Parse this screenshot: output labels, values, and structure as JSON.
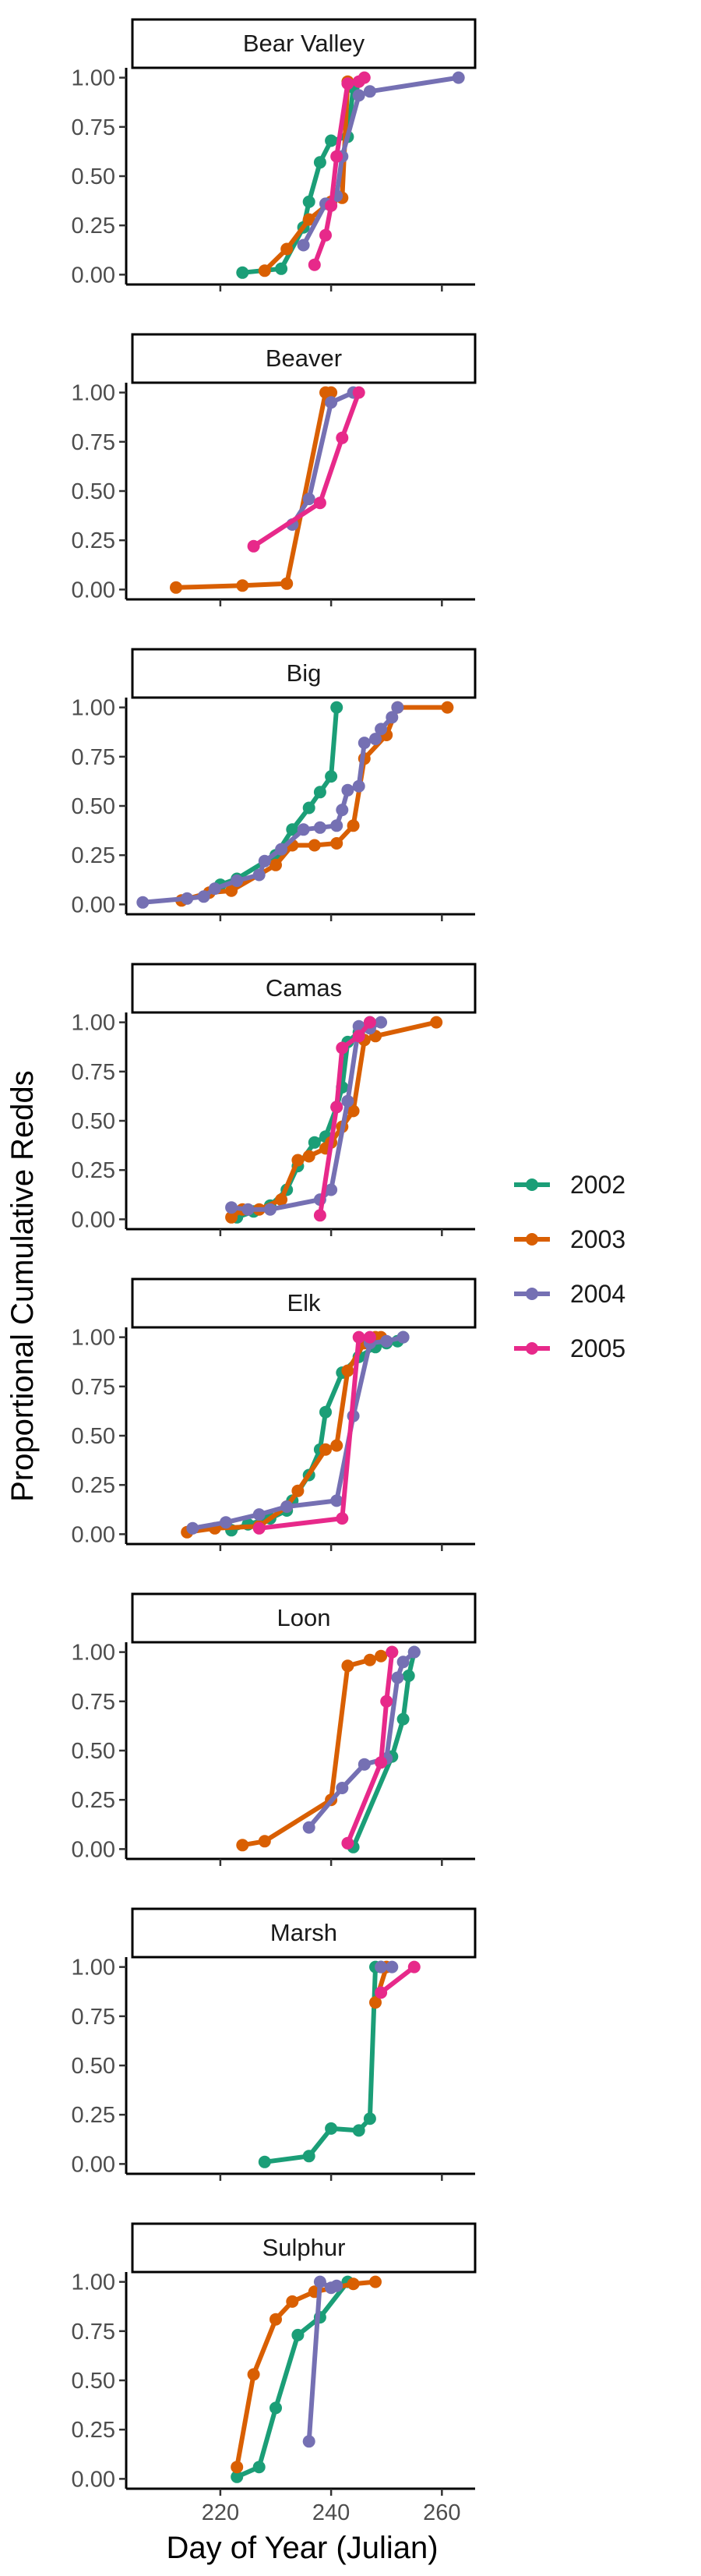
{
  "chart_data": {
    "type": "line",
    "xlabel": "Day of Year (Julian)",
    "ylabel": "Proportional Cumulative Redds",
    "xlim": [
      203,
      266
    ],
    "ylim": [
      -0.05,
      1.05
    ],
    "x_ticks": [
      220,
      240,
      260
    ],
    "y_ticks": [
      0.0,
      0.25,
      0.5,
      0.75,
      1.0
    ],
    "y_tick_labels": [
      "0.00",
      "0.25",
      "0.50",
      "0.75",
      "1.00"
    ],
    "grid": false,
    "legend_position": "right",
    "legend": [
      {
        "name": "2002",
        "color": "#1b9e77"
      },
      {
        "name": "2003",
        "color": "#d95f02"
      },
      {
        "name": "2004",
        "color": "#7570b3"
      },
      {
        "name": "2005",
        "color": "#e7298a"
      }
    ],
    "panels": [
      {
        "title": "Bear Valley",
        "series": [
          {
            "name": "2002",
            "points": [
              [
                224,
                0.01
              ],
              [
                231,
                0.03
              ],
              [
                235,
                0.24
              ],
              [
                236,
                0.37
              ],
              [
                238,
                0.57
              ],
              [
                240,
                0.68
              ],
              [
                243,
                0.7
              ],
              [
                244,
                0.95
              ]
            ]
          },
          {
            "name": "2003",
            "points": [
              [
                228,
                0.02
              ],
              [
                232,
                0.13
              ],
              [
                236,
                0.28
              ],
              [
                240,
                0.37
              ],
              [
                242,
                0.39
              ],
              [
                243,
                0.98
              ]
            ]
          },
          {
            "name": "2004",
            "points": [
              [
                235,
                0.15
              ],
              [
                239,
                0.36
              ],
              [
                241,
                0.4
              ],
              [
                242,
                0.6
              ],
              [
                245,
                0.91
              ],
              [
                247,
                0.93
              ],
              [
                263,
                1.0
              ]
            ]
          },
          {
            "name": "2005",
            "points": [
              [
                237,
                0.05
              ],
              [
                239,
                0.2
              ],
              [
                240,
                0.35
              ],
              [
                241,
                0.6
              ],
              [
                243,
                0.97
              ],
              [
                245,
                0.98
              ],
              [
                246,
                1.0
              ]
            ]
          }
        ]
      },
      {
        "title": "Beaver",
        "series": [
          {
            "name": "2003",
            "points": [
              [
                212,
                0.01
              ],
              [
                224,
                0.02
              ],
              [
                232,
                0.03
              ],
              [
                239,
                1.0
              ],
              [
                240,
                1.0
              ]
            ]
          },
          {
            "name": "2004",
            "points": [
              [
                233,
                0.33
              ],
              [
                236,
                0.46
              ],
              [
                240,
                0.95
              ],
              [
                244,
                1.0
              ]
            ]
          },
          {
            "name": "2005",
            "points": [
              [
                226,
                0.22
              ],
              [
                238,
                0.44
              ],
              [
                242,
                0.77
              ],
              [
                245,
                1.0
              ]
            ]
          }
        ]
      },
      {
        "title": "Big",
        "series": [
          {
            "name": "2002",
            "points": [
              [
                220,
                0.1
              ],
              [
                223,
                0.13
              ],
              [
                230,
                0.25
              ],
              [
                233,
                0.38
              ],
              [
                236,
                0.49
              ],
              [
                238,
                0.57
              ],
              [
                240,
                0.65
              ],
              [
                241,
                1.0
              ]
            ]
          },
          {
            "name": "2003",
            "points": [
              [
                213,
                0.02
              ],
              [
                218,
                0.06
              ],
              [
                222,
                0.07
              ],
              [
                230,
                0.2
              ],
              [
                233,
                0.3
              ],
              [
                237,
                0.3
              ],
              [
                241,
                0.31
              ],
              [
                244,
                0.4
              ],
              [
                246,
                0.74
              ],
              [
                250,
                0.86
              ],
              [
                252,
                1.0
              ],
              [
                261,
                1.0
              ]
            ]
          },
          {
            "name": "2004",
            "points": [
              [
                206,
                0.01
              ],
              [
                214,
                0.03
              ],
              [
                217,
                0.04
              ],
              [
                219,
                0.08
              ],
              [
                223,
                0.12
              ],
              [
                227,
                0.15
              ],
              [
                228,
                0.22
              ],
              [
                231,
                0.28
              ],
              [
                235,
                0.38
              ],
              [
                238,
                0.39
              ],
              [
                241,
                0.4
              ],
              [
                242,
                0.48
              ],
              [
                243,
                0.58
              ],
              [
                245,
                0.6
              ],
              [
                246,
                0.82
              ],
              [
                248,
                0.84
              ],
              [
                249,
                0.89
              ],
              [
                251,
                0.95
              ],
              [
                252,
                1.0
              ]
            ]
          }
        ]
      },
      {
        "title": "Camas",
        "series": [
          {
            "name": "2002",
            "points": [
              [
                223,
                0.01
              ],
              [
                226,
                0.04
              ],
              [
                229,
                0.07
              ],
              [
                232,
                0.15
              ],
              [
                234,
                0.27
              ],
              [
                237,
                0.39
              ],
              [
                239,
                0.42
              ],
              [
                241,
                0.57
              ],
              [
                242,
                0.67
              ],
              [
                243,
                0.9
              ],
              [
                245,
                0.95
              ],
              [
                247,
                1.0
              ]
            ]
          },
          {
            "name": "2003",
            "points": [
              [
                222,
                0.01
              ],
              [
                224,
                0.05
              ],
              [
                227,
                0.05
              ],
              [
                231,
                0.1
              ],
              [
                234,
                0.3
              ],
              [
                236,
                0.32
              ],
              [
                239,
                0.36
              ],
              [
                240,
                0.39
              ],
              [
                242,
                0.47
              ],
              [
                244,
                0.55
              ],
              [
                246,
                0.91
              ],
              [
                248,
                0.93
              ],
              [
                259,
                1.0
              ]
            ]
          },
          {
            "name": "2004",
            "points": [
              [
                222,
                0.06
              ],
              [
                225,
                0.05
              ],
              [
                229,
                0.05
              ],
              [
                238,
                0.1
              ],
              [
                240,
                0.15
              ],
              [
                243,
                0.6
              ],
              [
                245,
                0.98
              ],
              [
                247,
                0.97
              ],
              [
                249,
                1.0
              ]
            ]
          },
          {
            "name": "2005",
            "points": [
              [
                238,
                0.02
              ],
              [
                241,
                0.57
              ],
              [
                242,
                0.87
              ],
              [
                245,
                0.93
              ],
              [
                247,
                1.0
              ]
            ]
          }
        ]
      },
      {
        "title": "Elk",
        "series": [
          {
            "name": "2002",
            "points": [
              [
                222,
                0.02
              ],
              [
                225,
                0.05
              ],
              [
                229,
                0.08
              ],
              [
                232,
                0.12
              ],
              [
                233,
                0.17
              ],
              [
                236,
                0.3
              ],
              [
                238,
                0.43
              ],
              [
                239,
                0.62
              ],
              [
                242,
                0.82
              ],
              [
                245,
                0.9
              ],
              [
                248,
                0.95
              ],
              [
                250,
                0.97
              ],
              [
                252,
                0.98
              ],
              [
                253,
                1.0
              ]
            ]
          },
          {
            "name": "2003",
            "points": [
              [
                214,
                0.01
              ],
              [
                219,
                0.03
              ],
              [
                227,
                0.04
              ],
              [
                232,
                0.14
              ],
              [
                234,
                0.22
              ],
              [
                239,
                0.43
              ],
              [
                241,
                0.45
              ],
              [
                243,
                0.83
              ],
              [
                246,
                0.97
              ],
              [
                248,
                1.0
              ],
              [
                249,
                1.0
              ]
            ]
          },
          {
            "name": "2004",
            "points": [
              [
                215,
                0.03
              ],
              [
                221,
                0.06
              ],
              [
                227,
                0.1
              ],
              [
                232,
                0.14
              ],
              [
                241,
                0.17
              ],
              [
                244,
                0.6
              ],
              [
                247,
                0.97
              ],
              [
                250,
                0.98
              ],
              [
                253,
                1.0
              ]
            ]
          },
          {
            "name": "2005",
            "points": [
              [
                227,
                0.03
              ],
              [
                242,
                0.08
              ],
              [
                245,
                1.0
              ],
              [
                247,
                1.0
              ]
            ]
          }
        ]
      },
      {
        "title": "Loon",
        "series": [
          {
            "name": "2002",
            "points": [
              [
                244,
                0.01
              ],
              [
                251,
                0.47
              ],
              [
                253,
                0.66
              ],
              [
                254,
                0.88
              ],
              [
                255,
                1.0
              ]
            ]
          },
          {
            "name": "2003",
            "points": [
              [
                224,
                0.02
              ],
              [
                228,
                0.04
              ],
              [
                240,
                0.25
              ],
              [
                243,
                0.93
              ],
              [
                247,
                0.96
              ],
              [
                249,
                0.98
              ],
              [
                251,
                1.0
              ]
            ]
          },
          {
            "name": "2004",
            "points": [
              [
                236,
                0.11
              ],
              [
                242,
                0.31
              ],
              [
                246,
                0.43
              ],
              [
                250,
                0.46
              ],
              [
                252,
                0.87
              ],
              [
                253,
                0.95
              ],
              [
                255,
                1.0
              ]
            ]
          },
          {
            "name": "2005",
            "points": [
              [
                243,
                0.03
              ],
              [
                249,
                0.44
              ],
              [
                250,
                0.75
              ],
              [
                251,
                1.0
              ]
            ]
          }
        ]
      },
      {
        "title": "Marsh",
        "series": [
          {
            "name": "2002",
            "points": [
              [
                228,
                0.01
              ],
              [
                236,
                0.04
              ],
              [
                240,
                0.18
              ],
              [
                245,
                0.17
              ],
              [
                247,
                0.23
              ],
              [
                248,
                1.0
              ],
              [
                249,
                1.0
              ]
            ]
          },
          {
            "name": "2003",
            "points": [
              [
                248,
                0.82
              ],
              [
                250,
                1.0
              ]
            ]
          },
          {
            "name": "2004",
            "points": [
              [
                249,
                1.0
              ],
              [
                251,
                1.0
              ]
            ]
          },
          {
            "name": "2005",
            "points": [
              [
                249,
                0.87
              ],
              [
                255,
                1.0
              ]
            ]
          }
        ]
      },
      {
        "title": "Sulphur",
        "series": [
          {
            "name": "2002",
            "points": [
              [
                223,
                0.01
              ],
              [
                227,
                0.06
              ],
              [
                230,
                0.36
              ],
              [
                234,
                0.73
              ],
              [
                238,
                0.82
              ],
              [
                243,
                1.0
              ]
            ]
          },
          {
            "name": "2003",
            "points": [
              [
                223,
                0.06
              ],
              [
                226,
                0.53
              ],
              [
                230,
                0.81
              ],
              [
                233,
                0.9
              ],
              [
                237,
                0.95
              ],
              [
                244,
                0.99
              ],
              [
                248,
                1.0
              ]
            ]
          },
          {
            "name": "2004",
            "points": [
              [
                236,
                0.19
              ],
              [
                238,
                1.0
              ],
              [
                240,
                0.97
              ],
              [
                241,
                0.98
              ]
            ]
          }
        ]
      }
    ]
  }
}
